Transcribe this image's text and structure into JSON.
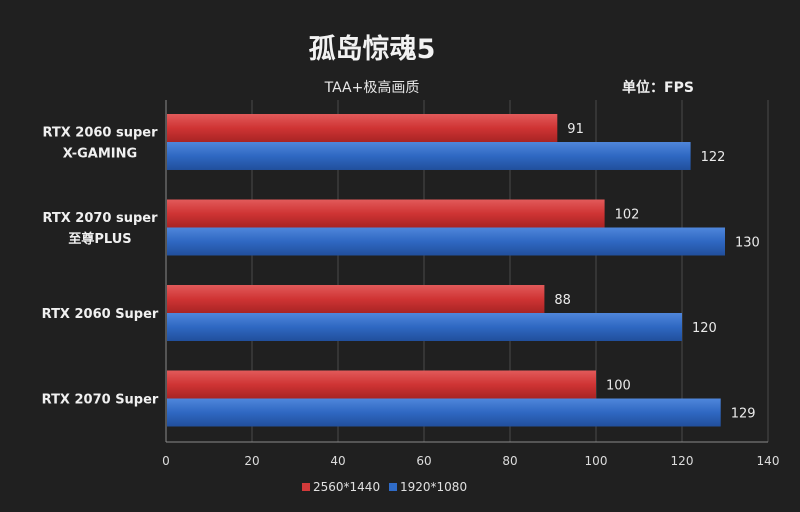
{
  "chart_data": {
    "type": "bar",
    "orientation": "horizontal",
    "title": "孤岛惊魂5",
    "subtitle": "TAA+极高画质",
    "unit_label": "单位：FPS",
    "categories": [
      [
        "RTX 2060 super",
        "X-GAMING"
      ],
      [
        "RTX 2070 super",
        "至尊PLUS"
      ],
      [
        "RTX 2060 Super"
      ],
      [
        "RTX 2070 Super"
      ]
    ],
    "series": [
      {
        "name": "2560*1440",
        "color": "#d23a3a",
        "values": [
          91,
          102,
          88,
          100
        ]
      },
      {
        "name": "1920*1080",
        "color": "#2f6bc7",
        "values": [
          122,
          130,
          120,
          129
        ]
      }
    ],
    "xlim": [
      0,
      140
    ],
    "xticks": [
      0,
      20,
      40,
      60,
      80,
      100,
      120,
      140
    ],
    "grid": true,
    "legend": "bottom"
  }
}
